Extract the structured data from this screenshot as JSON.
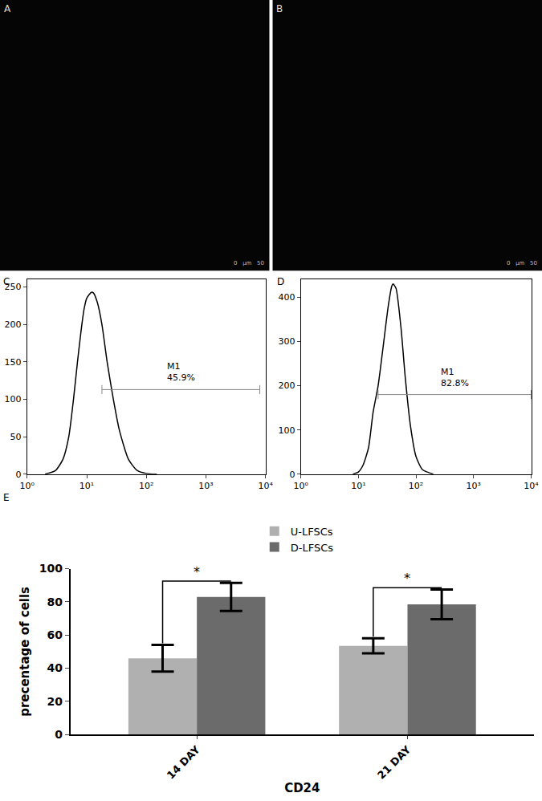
{
  "chart_data": [
    {
      "type": "image",
      "label": "A",
      "scale_bar": [
        "0",
        "μm",
        "50"
      ]
    },
    {
      "type": "image",
      "label": "B",
      "scale_bar": [
        "0",
        "μm",
        "50"
      ]
    },
    {
      "type": "line",
      "label": "C",
      "color": "#000000",
      "log": "x",
      "x": [
        2,
        3,
        4,
        5,
        6,
        7,
        8,
        9,
        10,
        11,
        12,
        13,
        15,
        18,
        22,
        28,
        35,
        50,
        70,
        100,
        150
      ],
      "values": [
        0,
        5,
        20,
        50,
        100,
        150,
        190,
        220,
        235,
        240,
        243,
        242,
        230,
        200,
        150,
        100,
        60,
        20,
        5,
        1,
        0
      ],
      "xlim": [
        1,
        10000
      ],
      "xticks": [
        {
          "value": 1,
          "label": "10⁰"
        },
        {
          "value": 10,
          "label": "10¹"
        },
        {
          "value": 100,
          "label": "10²"
        },
        {
          "value": 1000,
          "label": "10³"
        },
        {
          "value": 10000,
          "label": "10⁴"
        }
      ],
      "ylim": [
        0,
        260
      ],
      "yticks": [
        0,
        50,
        100,
        150,
        200,
        250
      ],
      "gate": {
        "label": "M1",
        "text": "45.9%",
        "x": [
          18,
          8000
        ],
        "y": 113
      }
    },
    {
      "type": "line",
      "label": "D",
      "color": "#000000",
      "log": "x",
      "x": [
        8,
        10,
        12,
        15,
        18,
        22,
        27,
        33,
        38,
        40,
        45,
        55,
        65,
        80,
        100,
        130,
        200
      ],
      "values": [
        0,
        5,
        20,
        60,
        140,
        200,
        290,
        380,
        425,
        430,
        420,
        330,
        220,
        110,
        40,
        10,
        0
      ],
      "xlim": [
        1,
        10000
      ],
      "xticks": [
        {
          "value": 1,
          "label": "10⁰"
        },
        {
          "value": 10,
          "label": "10¹"
        },
        {
          "value": 100,
          "label": "10²"
        },
        {
          "value": 1000,
          "label": "10³"
        },
        {
          "value": 10000,
          "label": "10⁴"
        }
      ],
      "ylim": [
        0,
        440
      ],
      "yticks": [
        0,
        100,
        200,
        300,
        400
      ],
      "gate": {
        "label": "M1",
        "text": "82.8%",
        "x": [
          22,
          10000
        ],
        "y": 180
      }
    },
    {
      "type": "bar",
      "label": "E",
      "categories": [
        "14 DAY",
        "21 DAY"
      ],
      "series": [
        {
          "name": "U-LFSCs",
          "color": "#b0b0b0",
          "values": [
            46,
            53.5
          ],
          "errors": [
            8,
            4.5
          ]
        },
        {
          "name": "D-LFSCs",
          "color": "#6b6b6b",
          "values": [
            83,
            78.5
          ],
          "errors": [
            8.5,
            9
          ]
        }
      ],
      "x_label": "CD24",
      "y_label": "precentage of cells",
      "ylim": [
        0,
        100
      ],
      "yticks": [
        0,
        20,
        40,
        60,
        80,
        100
      ],
      "legend": "top",
      "grid": false,
      "significance": [
        {
          "category": "14 DAY",
          "text": "*"
        },
        {
          "category": "21 DAY",
          "text": "*"
        }
      ]
    }
  ]
}
